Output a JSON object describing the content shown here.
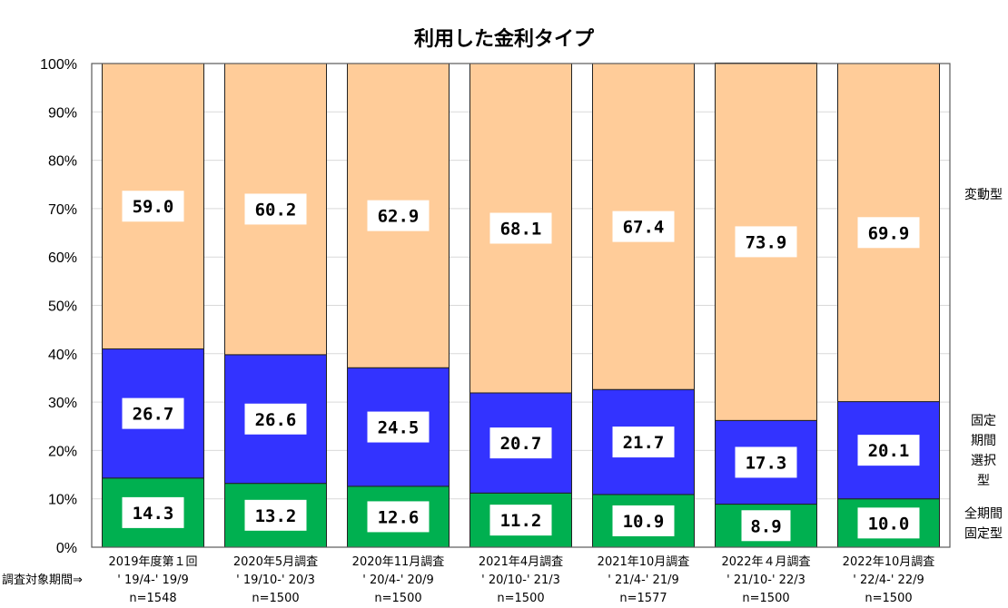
{
  "chart_data": {
    "type": "bar",
    "stacked": true,
    "title": "利用した金利タイプ",
    "ylim": [
      0,
      100
    ],
    "yticks": [
      "0%",
      "10%",
      "20%",
      "30%",
      "40%",
      "50%",
      "60%",
      "70%",
      "80%",
      "90%",
      "100%"
    ],
    "grid": true,
    "x_prefix_label": "調査対象期間⇒",
    "categories": [
      {
        "survey": "2019年度第１回",
        "period": "' 19/4-' 19/9",
        "n": "n=1548"
      },
      {
        "survey": "2020年5月調査",
        "period": "' 19/10-' 20/3",
        "n": "n=1500"
      },
      {
        "survey": "2020年11月調査",
        "period": "' 20/4-' 20/9",
        "n": "n=1500"
      },
      {
        "survey": "2021年4月調査",
        "period": "' 20/10-' 21/3",
        "n": "n=1500"
      },
      {
        "survey": "2021年10月調査",
        "period": "' 21/4-' 21/9",
        "n": "n=1577"
      },
      {
        "survey": "2022年４月調査",
        "period": "' 21/10-' 22/3",
        "n": "n=1500"
      },
      {
        "survey": "2022年10月調査",
        "period": "' 22/4-' 22/9",
        "n": "n=1500"
      }
    ],
    "series": [
      {
        "name": "全期間固定型",
        "legend_lines": [
          "全期間",
          "固定型"
        ],
        "color": "#00B050",
        "values": [
          14.3,
          13.2,
          12.6,
          11.2,
          10.9,
          8.9,
          10.0
        ],
        "labels": [
          "14.3",
          "13.2",
          "12.6",
          "11.2",
          "10.9",
          "8.9",
          "10.0"
        ]
      },
      {
        "name": "固定期間選択型",
        "legend_lines": [
          "固定",
          "期間",
          "選択",
          "型"
        ],
        "color": "#3333FF",
        "values": [
          26.7,
          26.6,
          24.5,
          20.7,
          21.7,
          17.3,
          20.1
        ],
        "labels": [
          "26.7",
          "26.6",
          "24.5",
          "20.7",
          "21.7",
          "17.3",
          "20.1"
        ]
      },
      {
        "name": "変動型",
        "legend_lines": [
          "変動型"
        ],
        "color": "#FFCC99",
        "values": [
          59.0,
          60.2,
          62.9,
          68.1,
          67.4,
          73.9,
          69.9
        ],
        "labels": [
          "59.0",
          "60.2",
          "62.9",
          "68.1",
          "67.4",
          "73.9",
          "69.9"
        ]
      }
    ],
    "legend_placement": "right"
  }
}
